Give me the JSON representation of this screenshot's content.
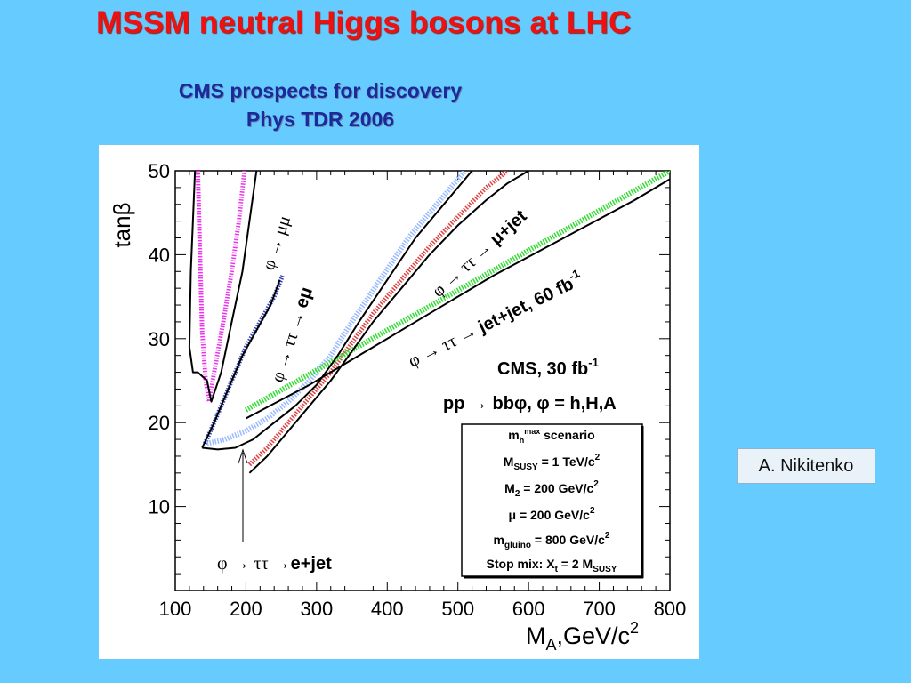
{
  "slide": {
    "title": "MSSM neutral Higgs bosons at LHC",
    "subtitle_line1": "CMS prospects for discovery",
    "subtitle_line2": "Phys TDR 2006",
    "author": "A. Nikitenko"
  },
  "colors": {
    "background": "#66ccff",
    "title": "#ee1111",
    "subtitle": "#1a2a9a",
    "mumu_band": "#ee33ee",
    "emu_band": "#3344bb",
    "ejet_band": "#99bbff",
    "mujet_band": "#dd4444",
    "jetjet_band": "#33dd33"
  },
  "chart_data": {
    "type": "line",
    "xlabel": "M",
    "xlabel_sub": "A",
    "xlabel_rest": ",GeV/c",
    "xlabel_sup": "2",
    "ylabel": "tanβ",
    "xlim": [
      100,
      800
    ],
    "ylim": [
      0,
      50
    ],
    "x_ticks": [
      100,
      200,
      300,
      400,
      500,
      600,
      700,
      800
    ],
    "y_ticks": [
      10,
      20,
      30,
      40,
      50
    ],
    "series": [
      {
        "name": "φ → μμ",
        "style": "solid",
        "points": [
          [
            128,
            50
          ],
          [
            122,
            38
          ],
          [
            120,
            29
          ],
          [
            125,
            26
          ],
          [
            132,
            26
          ],
          [
            145,
            25
          ],
          [
            151,
            22.5
          ],
          [
            165,
            26
          ],
          [
            180,
            32
          ],
          [
            195,
            38
          ],
          [
            205,
            44
          ],
          [
            215,
            50
          ]
        ]
      },
      {
        "name": "φ → μμ",
        "style": "band-magenta",
        "points": [
          [
            132,
            50
          ],
          [
            135,
            40
          ],
          [
            138,
            31
          ],
          [
            143,
            25
          ],
          [
            148,
            22.5
          ],
          [
            155,
            26
          ],
          [
            168,
            32
          ],
          [
            180,
            38
          ],
          [
            190,
            44
          ],
          [
            198,
            50
          ]
        ]
      },
      {
        "name": "φ → ττ → eμ",
        "style": "solid",
        "points": [
          [
            138,
            17
          ],
          [
            155,
            20
          ],
          [
            175,
            24
          ],
          [
            195,
            28
          ],
          [
            215,
            31
          ],
          [
            235,
            34
          ],
          [
            248,
            37
          ]
        ]
      },
      {
        "name": "φ → ττ → eμ",
        "style": "band-blue",
        "points": [
          [
            142,
            17.5
          ],
          [
            160,
            21
          ],
          [
            180,
            25
          ],
          [
            200,
            29
          ],
          [
            220,
            32
          ],
          [
            240,
            35
          ],
          [
            252,
            37.5
          ]
        ]
      },
      {
        "name": "φ → ττ → e+jet",
        "style": "solid",
        "points": [
          [
            138,
            17
          ],
          [
            160,
            16.8
          ],
          [
            185,
            17
          ],
          [
            210,
            18
          ],
          [
            240,
            20
          ],
          [
            270,
            22
          ],
          [
            300,
            24.5
          ],
          [
            330,
            28
          ],
          [
            360,
            32
          ],
          [
            400,
            37
          ],
          [
            440,
            42
          ],
          [
            480,
            46
          ],
          [
            520,
            50
          ]
        ]
      },
      {
        "name": "φ → ττ → e+jet",
        "style": "band-lightblue",
        "points": [
          [
            145,
            17.5
          ],
          [
            170,
            18
          ],
          [
            200,
            19
          ],
          [
            230,
            20.5
          ],
          [
            260,
            22.5
          ],
          [
            290,
            25
          ],
          [
            320,
            28
          ],
          [
            350,
            32
          ],
          [
            390,
            37
          ],
          [
            430,
            42
          ],
          [
            470,
            46
          ],
          [
            510,
            50
          ]
        ]
      },
      {
        "name": "φ → ττ → μ+jet",
        "style": "solid",
        "points": [
          [
            205,
            14
          ],
          [
            230,
            16
          ],
          [
            260,
            19
          ],
          [
            290,
            22
          ],
          [
            320,
            25
          ],
          [
            350,
            28.5
          ],
          [
            380,
            32
          ],
          [
            420,
            36
          ],
          [
            460,
            40
          ],
          [
            500,
            43.5
          ],
          [
            540,
            46.5
          ],
          [
            570,
            48.5
          ],
          [
            600,
            50
          ]
        ]
      },
      {
        "name": "φ → ττ → μ+jet",
        "style": "band-red",
        "points": [
          [
            205,
            15
          ],
          [
            230,
            17
          ],
          [
            260,
            20
          ],
          [
            290,
            23
          ],
          [
            320,
            26
          ],
          [
            350,
            29.5
          ],
          [
            380,
            33
          ],
          [
            420,
            37
          ],
          [
            460,
            41
          ],
          [
            500,
            44.5
          ],
          [
            540,
            48
          ],
          [
            570,
            50
          ]
        ]
      },
      {
        "name": "φ → ττ → jet+jet, 60 fb⁻¹",
        "style": "band-green",
        "points": [
          [
            200,
            21.5
          ],
          [
            800,
            50
          ]
        ]
      },
      {
        "name": "φ → ττ → jet+jet, 60 fb⁻¹",
        "style": "solid",
        "points": [
          [
            200,
            20.5
          ],
          [
            290,
            24.5
          ],
          [
            350,
            27.5
          ],
          [
            450,
            32.5
          ],
          [
            550,
            37.5
          ],
          [
            650,
            42
          ],
          [
            750,
            46.5
          ],
          [
            800,
            49
          ]
        ]
      }
    ],
    "annotations": {
      "lumi": "CMS, 30 fb",
      "lumi_sup": "-1",
      "process": "pp → bbφ, φ = h,H,A",
      "label_mumu": "φ → μμ",
      "label_emu_pre": "φ → ττ → ",
      "label_emu_bold": "eμ",
      "label_mujet_pre": "φ → ττ → ",
      "label_mujet_bold": "μ+jet",
      "label_jetjet_pre": "φ → ττ → ",
      "label_jetjet_bold": "jet+jet, 60 fb",
      "label_jetjet_sup": "-1",
      "label_ejet_pre": "φ → ττ →",
      "label_ejet_bold": "e+jet"
    },
    "scenario_box": {
      "line1_pre": "m",
      "line1_sub": "h",
      "line1_sup": "max",
      "line1_post": " scenario",
      "line2_pre": "M",
      "line2_sub": "SUSY",
      "line2_post": " = 1 TeV/c",
      "line2_sup": "2",
      "line3_pre": "M",
      "line3_sub": "2",
      "line3_post": " = 200 GeV/c",
      "line3_sup": "2",
      "line4_post": "μ = 200 GeV/c",
      "line4_sup": "2",
      "line5_pre": "m",
      "line5_sub": "gluino",
      "line5_post": " = 800 GeV/c",
      "line5_sup": "2",
      "line6_pre": "Stop mix: X",
      "line6_sub": "t",
      "line6_post": " = 2 M",
      "line6_sub2": "SUSY"
    }
  }
}
